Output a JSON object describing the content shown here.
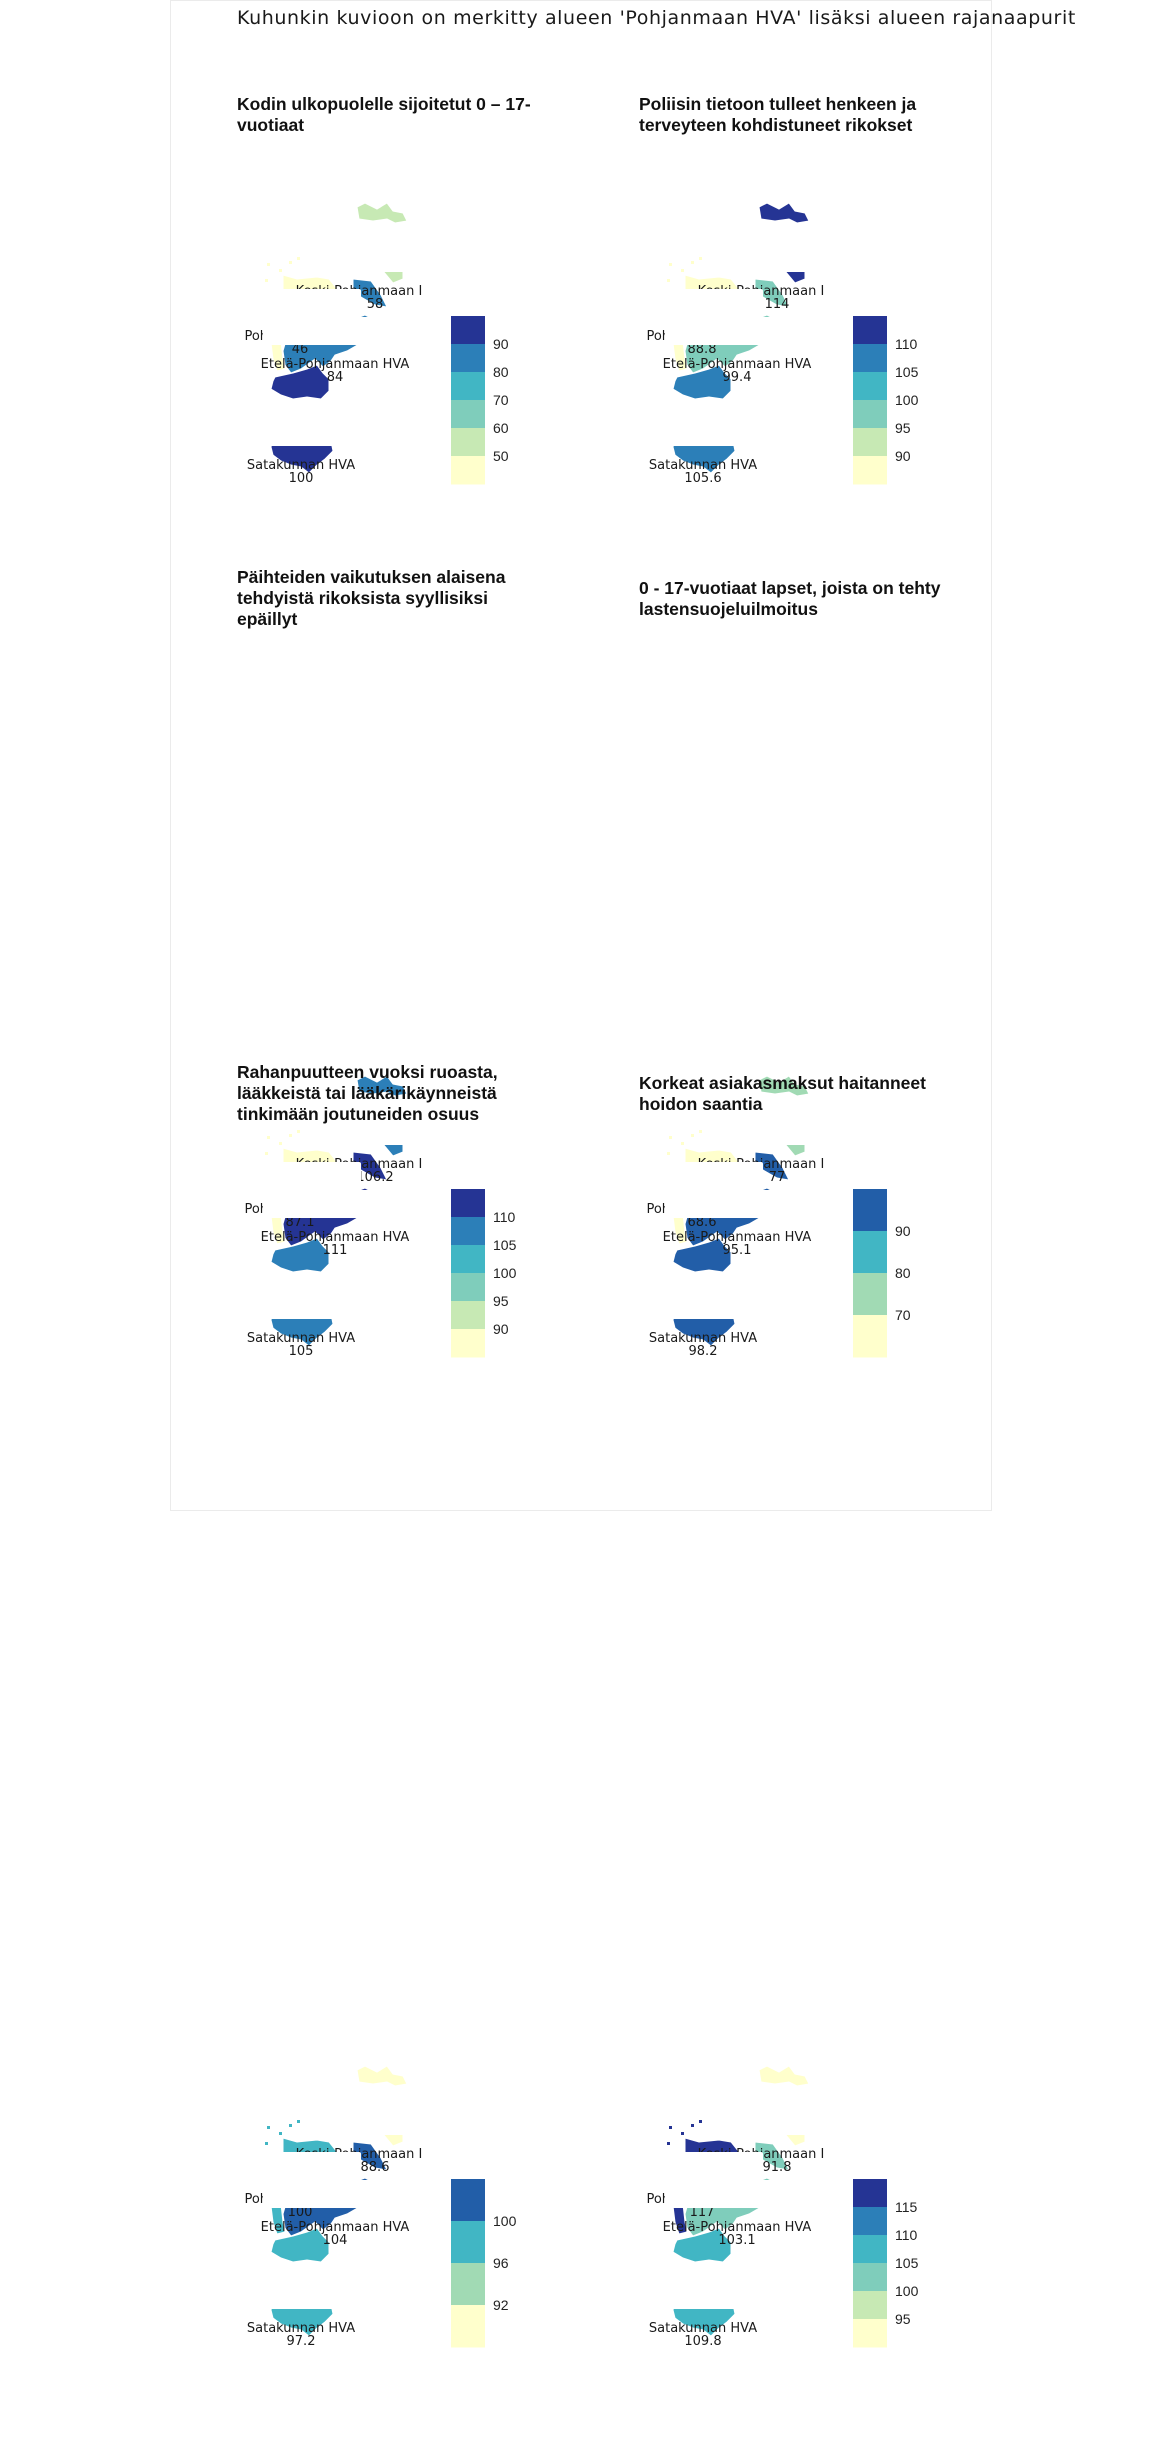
{
  "main_title": "Kuhunkin kuvioon on merkitty alueen 'Pohjanmaan HVA' lisäksi alueen rajanaapurit",
  "palette": {
    "c1": "#ffffcc",
    "c2": "#c7e9b4",
    "c3": "#a1dab4",
    "c4": "#7fcdbb",
    "c5": "#41b6c4",
    "c6": "#2c7fb8",
    "c7": "#225ea8",
    "c8": "#253494"
  },
  "panels": [
    {
      "title": "Kodin ulkopuolelle sijoitetut 0 – 17-vuotiaat",
      "regions": [
        {
          "name": "Keski-Pohjanmaan I",
          "value": "58"
        },
        {
          "name": "Pohjanmaan HVA",
          "value": "46"
        },
        {
          "name": "Etelä-Pohjanmaan HVA",
          "value": "84"
        },
        {
          "name": "Satakunnan HVA",
          "value": "100"
        }
      ],
      "fills": {
        "keski": "#c7e9b4",
        "pohjanmaa": "#ffffcc",
        "etela": "#2c7fb8",
        "satakunta": "#253494",
        "vaasa_strip": "#ffffcc"
      },
      "legend": {
        "colors": [
          "#253494",
          "#2c7fb8",
          "#41b6c4",
          "#7fcdbb",
          "#c7e9b4",
          "#ffffcc"
        ],
        "ticks": [
          "90",
          "80",
          "70",
          "60",
          "50"
        ]
      }
    },
    {
      "title": "Poliisin tietoon tulleet henkeen ja terveyteen kohdistuneet rikokset",
      "regions": [
        {
          "name": "Keski-Pohjanmaan I",
          "value": "114"
        },
        {
          "name": "Pohjanmaan HVA",
          "value": "88.8"
        },
        {
          "name": "Etelä-Pohjanmaan HVA",
          "value": "99.4"
        },
        {
          "name": "Satakunnan HVA",
          "value": "105.6"
        }
      ],
      "fills": {
        "keski": "#253494",
        "pohjanmaa": "#ffffcc",
        "etela": "#7fcdbb",
        "satakunta": "#2c7fb8",
        "vaasa_strip": "#ffffcc"
      },
      "legend": {
        "colors": [
          "#253494",
          "#2c7fb8",
          "#41b6c4",
          "#7fcdbb",
          "#c7e9b4",
          "#ffffcc"
        ],
        "ticks": [
          "110",
          "105",
          "100",
          "95",
          "90"
        ]
      }
    },
    {
      "title": "Päihteiden vaikutuksen alaisena tehdyistä rikoksista syyllisiksi epäillyt",
      "regions": [
        {
          "name": "Keski-Pohjanmaan I",
          "value": "106.2"
        },
        {
          "name": "Pohjanmaan HVA",
          "value": "87.1"
        },
        {
          "name": "Etelä-Pohjanmaan HVA",
          "value": "111"
        },
        {
          "name": "Satakunnan HVA",
          "value": "105"
        }
      ],
      "fills": {
        "keski": "#2c7fb8",
        "pohjanmaa": "#ffffcc",
        "etela": "#253494",
        "satakunta": "#2c7fb8",
        "vaasa_strip": "#ffffcc"
      },
      "legend": {
        "colors": [
          "#253494",
          "#2c7fb8",
          "#41b6c4",
          "#7fcdbb",
          "#c7e9b4",
          "#ffffcc"
        ],
        "ticks": [
          "110",
          "105",
          "100",
          "95",
          "90"
        ]
      }
    },
    {
      "title": "0 - 17-vuotiaat lapset, joista on tehty lastensuojeluilmoitus",
      "regions": [
        {
          "name": "Keski-Pohjanmaan I",
          "value": "77"
        },
        {
          "name": "Pohjanmaan HVA",
          "value": "68.6"
        },
        {
          "name": "Etelä-Pohjanmaan HVA",
          "value": "95.1"
        },
        {
          "name": "Satakunnan HVA",
          "value": "98.2"
        }
      ],
      "fills": {
        "keski": "#a1dab4",
        "pohjanmaa": "#ffffcc",
        "etela": "#225ea8",
        "satakunta": "#225ea8",
        "vaasa_strip": "#ffffcc"
      },
      "legend": {
        "colors": [
          "#225ea8",
          "#41b6c4",
          "#a1dab4",
          "#ffffcc"
        ],
        "ticks": [
          "90",
          "80",
          "70"
        ]
      }
    },
    {
      "title": "Rahanpuutteen vuoksi ruoasta, lääkkeistä tai lääkärikäynneistä tinkimään joutuneiden osuus",
      "regions": [
        {
          "name": "Keski-Pohjanmaan I",
          "value": "88.6"
        },
        {
          "name": "Pohjanmaan HVA",
          "value": "100"
        },
        {
          "name": "Etelä-Pohjanmaan HVA",
          "value": "104"
        },
        {
          "name": "Satakunnan HVA",
          "value": "97.2"
        }
      ],
      "fills": {
        "keski": "#ffffcc",
        "pohjanmaa": "#41b6c4",
        "etela": "#225ea8",
        "satakunta": "#41b6c4",
        "vaasa_strip": "#41b6c4"
      },
      "legend": {
        "colors": [
          "#225ea8",
          "#41b6c4",
          "#a1dab4",
          "#ffffcc"
        ],
        "ticks": [
          "100",
          "96",
          "92"
        ]
      }
    },
    {
      "title": "Korkeat asiakasmaksut haitanneet hoidon saantia",
      "regions": [
        {
          "name": "Keski-Pohjanmaan I",
          "value": "91.8"
        },
        {
          "name": "Pohjanmaan HVA",
          "value": "117"
        },
        {
          "name": "Etelä-Pohjanmaan HVA",
          "value": "103.1"
        },
        {
          "name": "Satakunnan HVA",
          "value": "109.8"
        }
      ],
      "fills": {
        "keski": "#ffffcc",
        "pohjanmaa": "#253494",
        "etela": "#7fcdbb",
        "satakunta": "#41b6c4",
        "vaasa_strip": "#253494"
      },
      "legend": {
        "colors": [
          "#253494",
          "#2c7fb8",
          "#41b6c4",
          "#7fcdbb",
          "#c7e9b4",
          "#ffffcc"
        ],
        "ticks": [
          "115",
          "110",
          "105",
          "100",
          "95"
        ]
      }
    }
  ]
}
